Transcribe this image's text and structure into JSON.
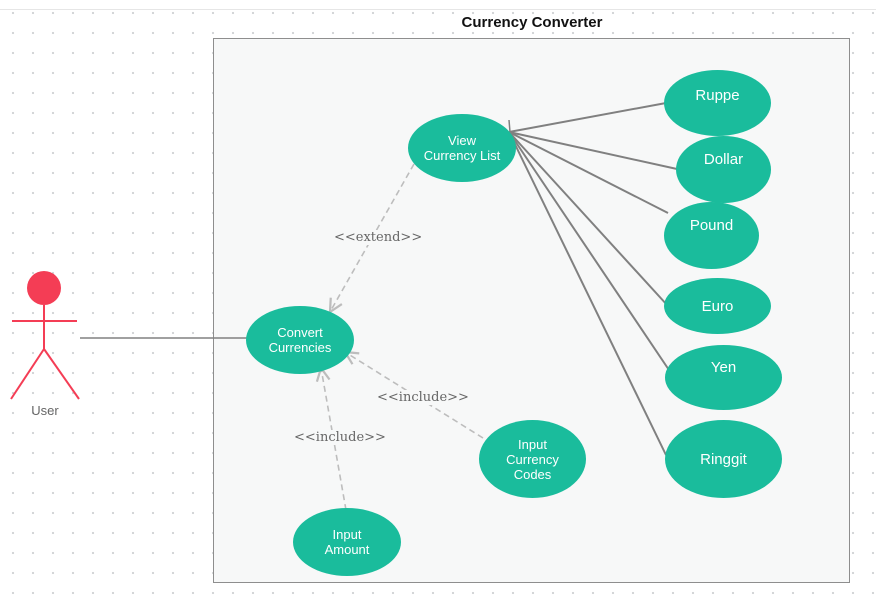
{
  "diagram": {
    "title": "Currency Converter",
    "actor": {
      "label": "User",
      "color": "#f43d55"
    },
    "use_cases": {
      "view_currency_list": "View\nCurrency List",
      "convert_currencies": "Convert\nCurrencies",
      "input_currency_codes": "Input\nCurrency\nCodes",
      "input_amount": "Input\nAmount",
      "ruppe": "Ruppe",
      "dollar": "Dollar",
      "pound": "Pound",
      "euro": "Euro",
      "yen": "Yen",
      "ringgit": "Ringgit"
    },
    "relations": {
      "extend": "<<extend>>",
      "include_codes": "<<include>>",
      "include_amount": "<<include>>"
    },
    "colors": {
      "use_case_fill": "#1abc9c",
      "boundary_stroke": "#8e8e8e",
      "dashed_line": "#bdbdbd",
      "solid_line": "#808080"
    }
  }
}
